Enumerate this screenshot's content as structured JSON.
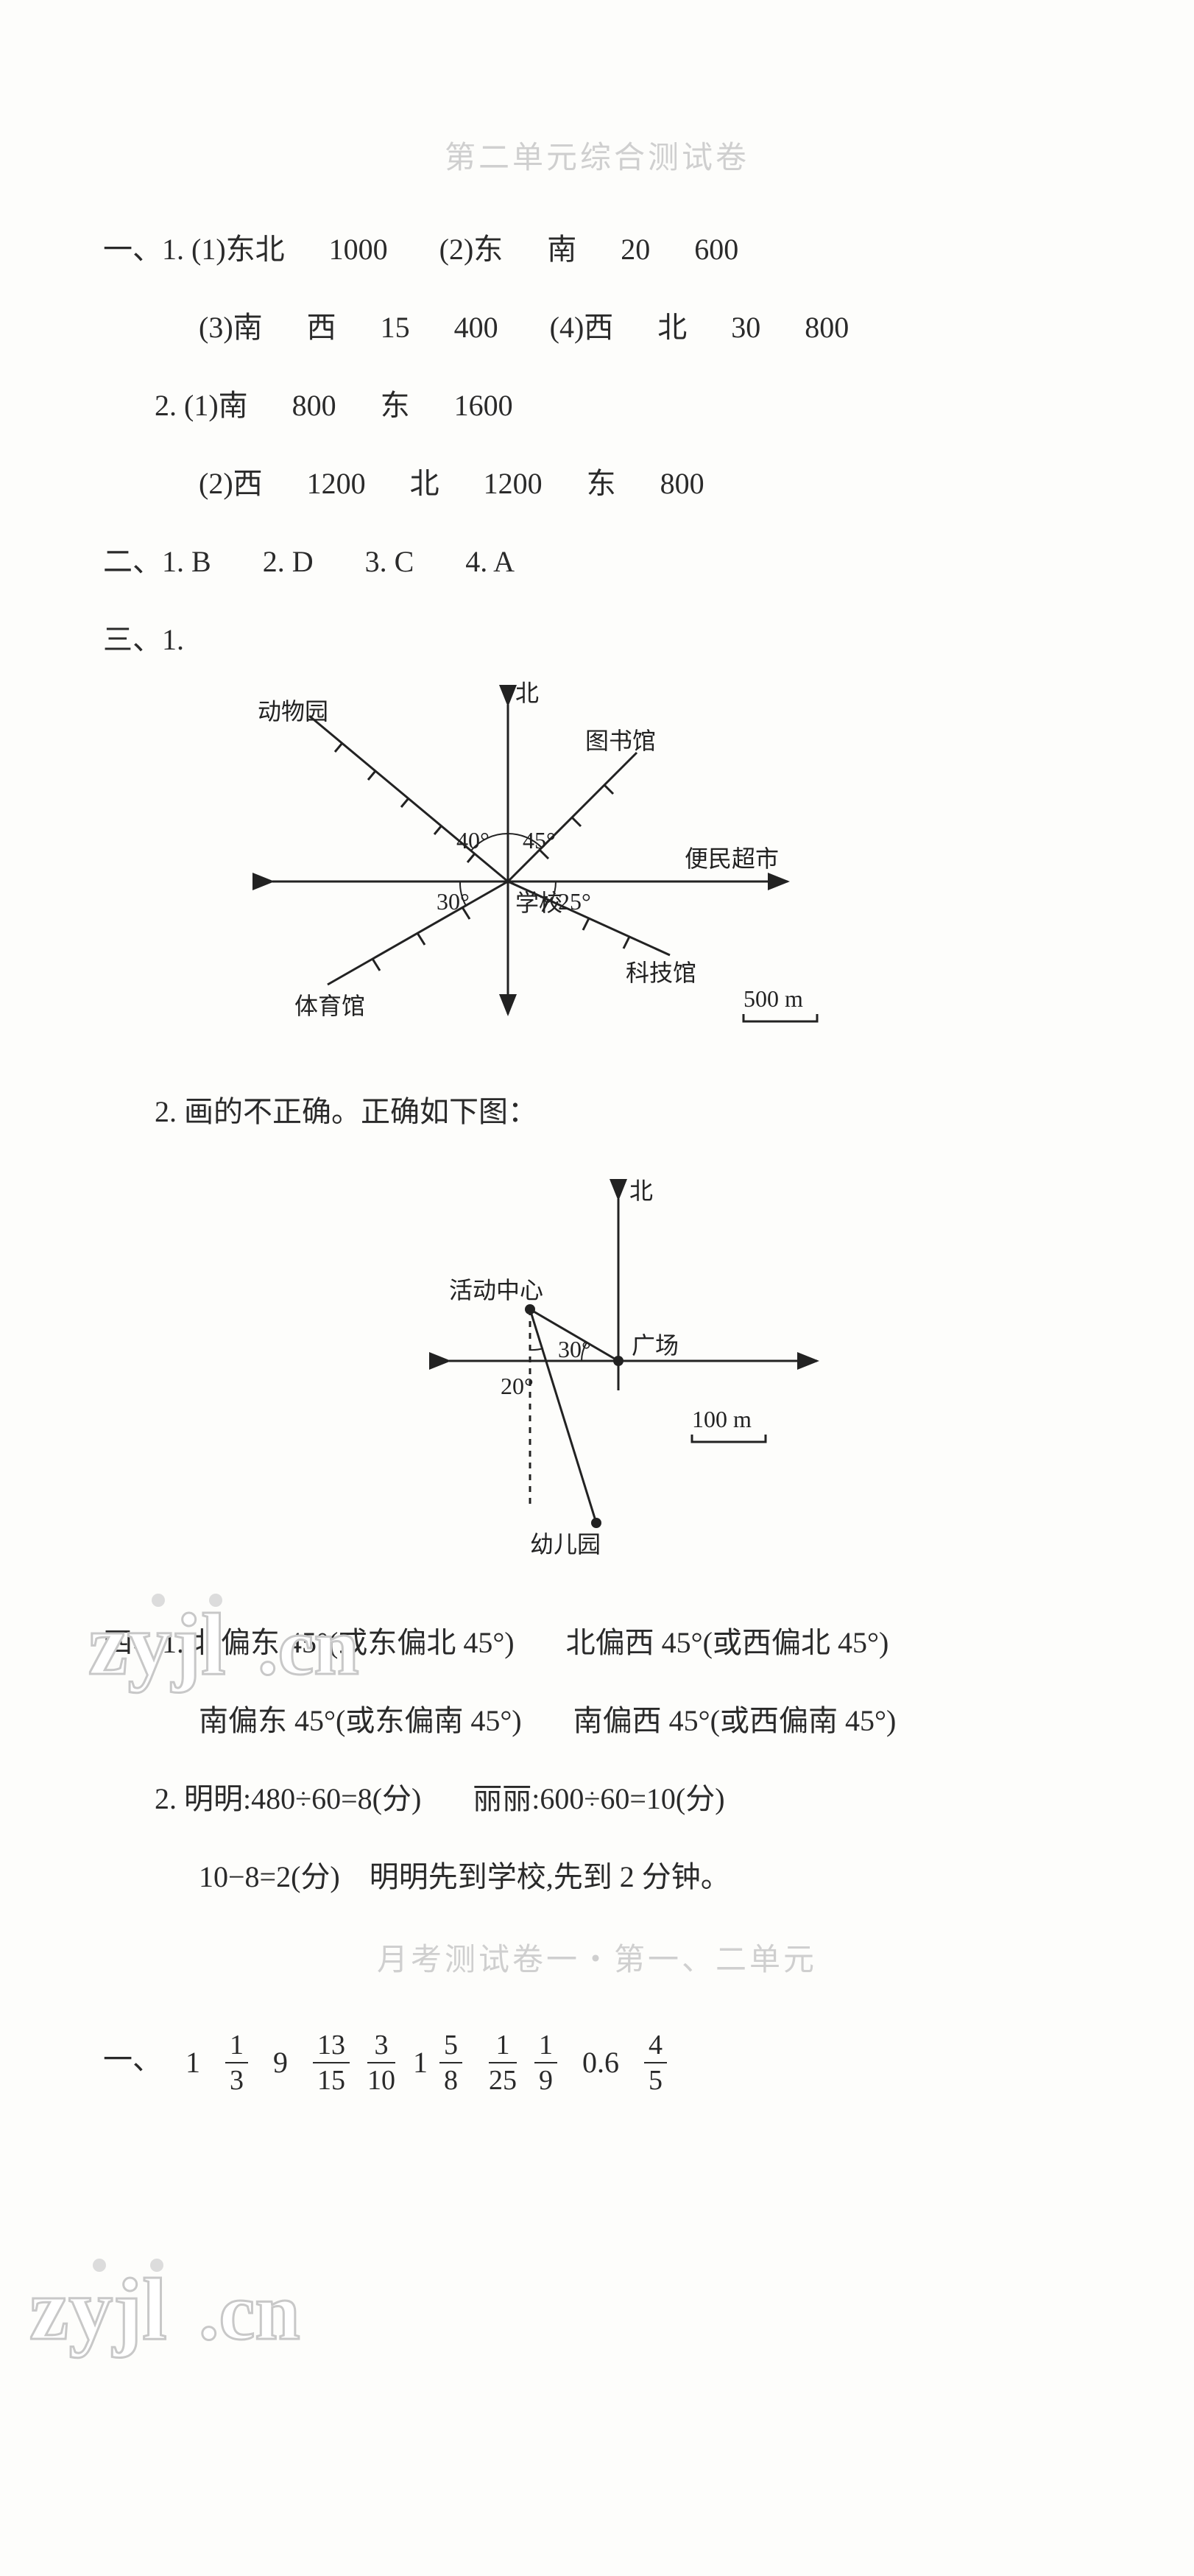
{
  "title": "第二单元综合测试卷",
  "section1": {
    "label": "一、",
    "q1": {
      "label": "1.",
      "p1": {
        "label": "(1)",
        "a": "东北",
        "b": "1000",
        "p2label": "(2)",
        "c": "东",
        "d": "南",
        "e": "20",
        "f": "600"
      },
      "p3": {
        "label": "(3)",
        "a": "南",
        "b": "西",
        "c": "15",
        "d": "400",
        "p4label": "(4)",
        "e": "西",
        "f": "北",
        "g": "30",
        "h": "800"
      }
    },
    "q2": {
      "label": "2.",
      "p1": {
        "label": "(1)",
        "a": "南",
        "b": "800",
        "c": "东",
        "d": "1600"
      },
      "p2": {
        "label": "(2)",
        "a": "西",
        "b": "1200",
        "c": "北",
        "d": "1200",
        "e": "东",
        "f": "800"
      }
    }
  },
  "section2": {
    "label": "二、",
    "items": [
      {
        "n": "1.",
        "v": "B"
      },
      {
        "n": "2.",
        "v": "D"
      },
      {
        "n": "3.",
        "v": "C"
      },
      {
        "n": "4.",
        "v": "A"
      }
    ]
  },
  "section3": {
    "label": "三、",
    "q1": "1.",
    "diagram1": {
      "north": "北",
      "labels": {
        "zoo": "动物园",
        "library": "图书馆",
        "supermarket": "便民超市",
        "tech": "科技馆",
        "stadium": "体育馆",
        "school": "学校"
      },
      "angles": {
        "a40": "40°",
        "a45": "45°",
        "a30": "30°",
        "a25": "25°"
      },
      "scale": "500 m"
    },
    "q2text": "2. 画的不正确。正确如下图：",
    "diagram2": {
      "north": "北",
      "labels": {
        "activity": "活动中心",
        "plaza": "广场",
        "kinder": "幼儿园"
      },
      "angles": {
        "a30": "30°",
        "a20": "20°"
      },
      "scale": "100 m"
    }
  },
  "section4": {
    "label": "四、",
    "q1": {
      "label": "1.",
      "line1a": "北偏东 45°(或东偏北 45°)",
      "line1b": "北偏西 45°(或西偏北 45°)",
      "line2a": "南偏东 45°(或东偏南 45°)",
      "line2b": "南偏西 45°(或西偏南 45°)"
    },
    "q2": {
      "label": "2.",
      "line1a": "明明:480÷60=8(分)",
      "line1b": "丽丽:600÷60=10(分)",
      "line2": "10−8=2(分)　明明先到学校,先到 2 分钟。"
    }
  },
  "title2": "月考测试卷一・第一、二单元",
  "section5": {
    "label": "一、",
    "items": [
      {
        "type": "int",
        "v": "1"
      },
      {
        "type": "frac",
        "n": "1",
        "d": "3"
      },
      {
        "type": "int",
        "v": "9"
      },
      {
        "type": "frac",
        "n": "13",
        "d": "15"
      },
      {
        "type": "frac",
        "n": "3",
        "d": "10"
      },
      {
        "type": "mixed",
        "w": "1",
        "n": "5",
        "d": "8"
      },
      {
        "type": "frac",
        "n": "1",
        "d": "25"
      },
      {
        "type": "frac",
        "n": "1",
        "d": "9"
      },
      {
        "type": "int",
        "v": "0.6"
      },
      {
        "type": "frac",
        "n": "4",
        "d": "5"
      }
    ]
  },
  "watermarks": {
    "text": "zyjl.cn"
  },
  "colors": {
    "text": "#2a2a2a",
    "faint": "#cfcfcf",
    "bg": "#fdfdfb",
    "svg_stroke": "#222222"
  }
}
